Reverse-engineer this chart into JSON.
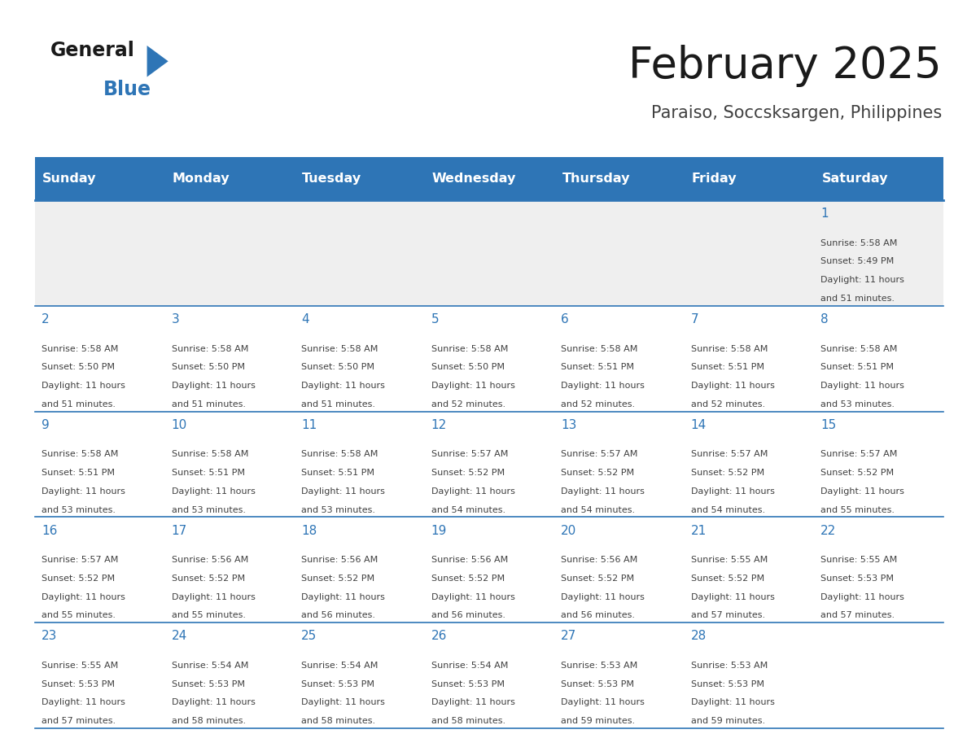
{
  "title": "February 2025",
  "subtitle": "Paraiso, Soccsksargen, Philippines",
  "days_of_week": [
    "Sunday",
    "Monday",
    "Tuesday",
    "Wednesday",
    "Thursday",
    "Friday",
    "Saturday"
  ],
  "header_bg": "#2E75B6",
  "header_text_color": "#FFFFFF",
  "cell_bg_light": "#EFEFEF",
  "cell_bg_white": "#FFFFFF",
  "grid_line_color": "#2E75B6",
  "day_num_color": "#2E75B6",
  "cell_text_color": "#404040",
  "title_color": "#1a1a1a",
  "subtitle_color": "#404040",
  "logo_general_color": "#1a1a1a",
  "logo_blue_color": "#2E75B6",
  "calendar_data": [
    {
      "day": 1,
      "col": 6,
      "row": 0,
      "sunrise": "5:58 AM",
      "sunset": "5:49 PM",
      "daylight": "11 hours",
      "daylight2": "and 51 minutes."
    },
    {
      "day": 2,
      "col": 0,
      "row": 1,
      "sunrise": "5:58 AM",
      "sunset": "5:50 PM",
      "daylight": "11 hours",
      "daylight2": "and 51 minutes."
    },
    {
      "day": 3,
      "col": 1,
      "row": 1,
      "sunrise": "5:58 AM",
      "sunset": "5:50 PM",
      "daylight": "11 hours",
      "daylight2": "and 51 minutes."
    },
    {
      "day": 4,
      "col": 2,
      "row": 1,
      "sunrise": "5:58 AM",
      "sunset": "5:50 PM",
      "daylight": "11 hours",
      "daylight2": "and 51 minutes."
    },
    {
      "day": 5,
      "col": 3,
      "row": 1,
      "sunrise": "5:58 AM",
      "sunset": "5:50 PM",
      "daylight": "11 hours",
      "daylight2": "and 52 minutes."
    },
    {
      "day": 6,
      "col": 4,
      "row": 1,
      "sunrise": "5:58 AM",
      "sunset": "5:51 PM",
      "daylight": "11 hours",
      "daylight2": "and 52 minutes."
    },
    {
      "day": 7,
      "col": 5,
      "row": 1,
      "sunrise": "5:58 AM",
      "sunset": "5:51 PM",
      "daylight": "11 hours",
      "daylight2": "and 52 minutes."
    },
    {
      "day": 8,
      "col": 6,
      "row": 1,
      "sunrise": "5:58 AM",
      "sunset": "5:51 PM",
      "daylight": "11 hours",
      "daylight2": "and 53 minutes."
    },
    {
      "day": 9,
      "col": 0,
      "row": 2,
      "sunrise": "5:58 AM",
      "sunset": "5:51 PM",
      "daylight": "11 hours",
      "daylight2": "and 53 minutes."
    },
    {
      "day": 10,
      "col": 1,
      "row": 2,
      "sunrise": "5:58 AM",
      "sunset": "5:51 PM",
      "daylight": "11 hours",
      "daylight2": "and 53 minutes."
    },
    {
      "day": 11,
      "col": 2,
      "row": 2,
      "sunrise": "5:58 AM",
      "sunset": "5:51 PM",
      "daylight": "11 hours",
      "daylight2": "and 53 minutes."
    },
    {
      "day": 12,
      "col": 3,
      "row": 2,
      "sunrise": "5:57 AM",
      "sunset": "5:52 PM",
      "daylight": "11 hours",
      "daylight2": "and 54 minutes."
    },
    {
      "day": 13,
      "col": 4,
      "row": 2,
      "sunrise": "5:57 AM",
      "sunset": "5:52 PM",
      "daylight": "11 hours",
      "daylight2": "and 54 minutes."
    },
    {
      "day": 14,
      "col": 5,
      "row": 2,
      "sunrise": "5:57 AM",
      "sunset": "5:52 PM",
      "daylight": "11 hours",
      "daylight2": "and 54 minutes."
    },
    {
      "day": 15,
      "col": 6,
      "row": 2,
      "sunrise": "5:57 AM",
      "sunset": "5:52 PM",
      "daylight": "11 hours",
      "daylight2": "and 55 minutes."
    },
    {
      "day": 16,
      "col": 0,
      "row": 3,
      "sunrise": "5:57 AM",
      "sunset": "5:52 PM",
      "daylight": "11 hours",
      "daylight2": "and 55 minutes."
    },
    {
      "day": 17,
      "col": 1,
      "row": 3,
      "sunrise": "5:56 AM",
      "sunset": "5:52 PM",
      "daylight": "11 hours",
      "daylight2": "and 55 minutes."
    },
    {
      "day": 18,
      "col": 2,
      "row": 3,
      "sunrise": "5:56 AM",
      "sunset": "5:52 PM",
      "daylight": "11 hours",
      "daylight2": "and 56 minutes."
    },
    {
      "day": 19,
      "col": 3,
      "row": 3,
      "sunrise": "5:56 AM",
      "sunset": "5:52 PM",
      "daylight": "11 hours",
      "daylight2": "and 56 minutes."
    },
    {
      "day": 20,
      "col": 4,
      "row": 3,
      "sunrise": "5:56 AM",
      "sunset": "5:52 PM",
      "daylight": "11 hours",
      "daylight2": "and 56 minutes."
    },
    {
      "day": 21,
      "col": 5,
      "row": 3,
      "sunrise": "5:55 AM",
      "sunset": "5:52 PM",
      "daylight": "11 hours",
      "daylight2": "and 57 minutes."
    },
    {
      "day": 22,
      "col": 6,
      "row": 3,
      "sunrise": "5:55 AM",
      "sunset": "5:53 PM",
      "daylight": "11 hours",
      "daylight2": "and 57 minutes."
    },
    {
      "day": 23,
      "col": 0,
      "row": 4,
      "sunrise": "5:55 AM",
      "sunset": "5:53 PM",
      "daylight": "11 hours",
      "daylight2": "and 57 minutes."
    },
    {
      "day": 24,
      "col": 1,
      "row": 4,
      "sunrise": "5:54 AM",
      "sunset": "5:53 PM",
      "daylight": "11 hours",
      "daylight2": "and 58 minutes."
    },
    {
      "day": 25,
      "col": 2,
      "row": 4,
      "sunrise": "5:54 AM",
      "sunset": "5:53 PM",
      "daylight": "11 hours",
      "daylight2": "and 58 minutes."
    },
    {
      "day": 26,
      "col": 3,
      "row": 4,
      "sunrise": "5:54 AM",
      "sunset": "5:53 PM",
      "daylight": "11 hours",
      "daylight2": "and 58 minutes."
    },
    {
      "day": 27,
      "col": 4,
      "row": 4,
      "sunrise": "5:53 AM",
      "sunset": "5:53 PM",
      "daylight": "11 hours",
      "daylight2": "and 59 minutes."
    },
    {
      "day": 28,
      "col": 5,
      "row": 4,
      "sunrise": "5:53 AM",
      "sunset": "5:53 PM",
      "daylight": "11 hours",
      "daylight2": "and 59 minutes."
    }
  ]
}
